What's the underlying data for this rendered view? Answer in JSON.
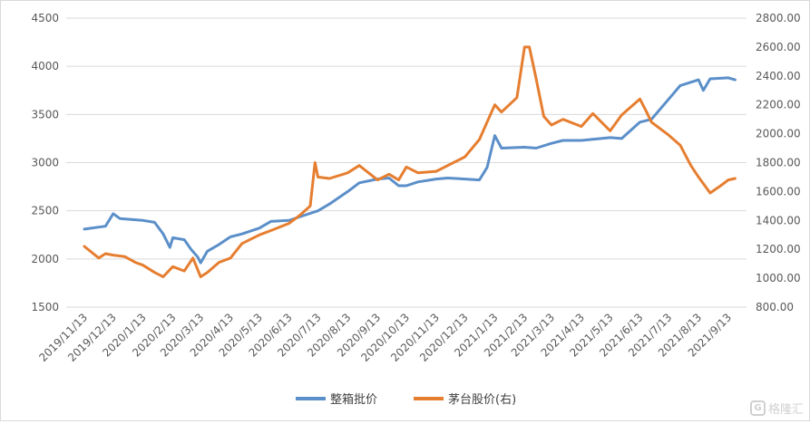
{
  "chart_data": {
    "type": "line",
    "title": "",
    "left_axis": {
      "ticks": [
        "1500",
        "2000",
        "2500",
        "3000",
        "3500",
        "4000",
        "4500"
      ],
      "range": [
        1500,
        4500
      ]
    },
    "right_axis": {
      "ticks": [
        "800.00",
        "1000.00",
        "1200.00",
        "1400.00",
        "1600.00",
        "1800.00",
        "2000.00",
        "2200.00",
        "2400.00",
        "2600.00",
        "2800.00"
      ],
      "range": [
        800,
        2800
      ]
    },
    "x_tick_labels": [
      "2019/11/13",
      "2019/12/13",
      "2020/1/13",
      "2020/2/13",
      "2020/3/13",
      "2020/4/13",
      "2020/5/13",
      "2020/6/13",
      "2020/7/13",
      "2020/8/13",
      "2020/9/13",
      "2020/10/13",
      "2020/11/13",
      "2020/12/13",
      "2021/1/13",
      "2021/2/13",
      "2021/3/13",
      "2021/4/13",
      "2021/5/13",
      "2021/6/13",
      "2021/7/13",
      "2021/8/13",
      "2021/9/13"
    ],
    "grid": "horizontal",
    "legend_position": "bottom",
    "series": [
      {
        "name": "整箱批价",
        "axis": "left",
        "color": "#5b8fc9",
        "points": [
          [
            "2019/11/13",
            2310
          ],
          [
            "2019/11/28",
            2330
          ],
          [
            "2019/12/5",
            2340
          ],
          [
            "2019/12/13",
            2470
          ],
          [
            "2019/12/20",
            2420
          ],
          [
            "2020/1/1",
            2410
          ],
          [
            "2020/1/13",
            2400
          ],
          [
            "2020/1/25",
            2380
          ],
          [
            "2020/2/3",
            2260
          ],
          [
            "2020/2/10",
            2120
          ],
          [
            "2020/2/13",
            2220
          ],
          [
            "2020/2/25",
            2200
          ],
          [
            "2020/3/3",
            2100
          ],
          [
            "2020/3/10",
            2020
          ],
          [
            "2020/3/13",
            1960
          ],
          [
            "2020/3/20",
            2080
          ],
          [
            "2020/4/1",
            2150
          ],
          [
            "2020/4/13",
            2230
          ],
          [
            "2020/4/25",
            2260
          ],
          [
            "2020/5/13",
            2320
          ],
          [
            "2020/5/25",
            2390
          ],
          [
            "2020/6/13",
            2400
          ],
          [
            "2020/6/25",
            2440
          ],
          [
            "2020/7/13",
            2500
          ],
          [
            "2020/7/25",
            2570
          ],
          [
            "2020/8/13",
            2700
          ],
          [
            "2020/8/25",
            2790
          ],
          [
            "2020/9/13",
            2830
          ],
          [
            "2020/9/25",
            2840
          ],
          [
            "2020/10/5",
            2760
          ],
          [
            "2020/10/13",
            2760
          ],
          [
            "2020/10/25",
            2800
          ],
          [
            "2020/11/13",
            2830
          ],
          [
            "2020/11/25",
            2840
          ],
          [
            "2020/12/13",
            2830
          ],
          [
            "2020/12/28",
            2820
          ],
          [
            "2021/1/5",
            2950
          ],
          [
            "2021/1/13",
            3280
          ],
          [
            "2021/1/20",
            3150
          ],
          [
            "2021/2/13",
            3160
          ],
          [
            "2021/2/25",
            3150
          ],
          [
            "2021/3/13",
            3200
          ],
          [
            "2021/3/25",
            3230
          ],
          [
            "2021/4/13",
            3230
          ],
          [
            "2021/5/13",
            3260
          ],
          [
            "2021/5/25",
            3250
          ],
          [
            "2021/6/13",
            3420
          ],
          [
            "2021/6/25",
            3450
          ],
          [
            "2021/7/13",
            3660
          ],
          [
            "2021/7/25",
            3800
          ],
          [
            "2021/8/13",
            3860
          ],
          [
            "2021/8/18",
            3750
          ],
          [
            "2021/8/25",
            3870
          ],
          [
            "2021/9/13",
            3880
          ],
          [
            "2021/9/20",
            3860
          ]
        ]
      },
      {
        "name": "茅台股价(右)",
        "axis": "right",
        "color": "#e67e30",
        "points": [
          [
            "2019/11/13",
            1220
          ],
          [
            "2019/11/28",
            1140
          ],
          [
            "2019/12/5",
            1170
          ],
          [
            "2019/12/13",
            1160
          ],
          [
            "2019/12/25",
            1150
          ],
          [
            "2020/1/5",
            1110
          ],
          [
            "2020/1/13",
            1090
          ],
          [
            "2020/1/25",
            1040
          ],
          [
            "2020/2/3",
            1010
          ],
          [
            "2020/2/13",
            1080
          ],
          [
            "2020/2/25",
            1050
          ],
          [
            "2020/3/5",
            1140
          ],
          [
            "2020/3/13",
            1010
          ],
          [
            "2020/3/20",
            1040
          ],
          [
            "2020/4/1",
            1110
          ],
          [
            "2020/4/13",
            1140
          ],
          [
            "2020/4/25",
            1240
          ],
          [
            "2020/5/13",
            1300
          ],
          [
            "2020/5/25",
            1330
          ],
          [
            "2020/6/13",
            1380
          ],
          [
            "2020/6/25",
            1440
          ],
          [
            "2020/7/5",
            1500
          ],
          [
            "2020/7/10",
            1800
          ],
          [
            "2020/7/13",
            1700
          ],
          [
            "2020/7/25",
            1690
          ],
          [
            "2020/8/13",
            1730
          ],
          [
            "2020/8/25",
            1780
          ],
          [
            "2020/9/13",
            1680
          ],
          [
            "2020/9/25",
            1720
          ],
          [
            "2020/10/5",
            1680
          ],
          [
            "2020/10/13",
            1770
          ],
          [
            "2020/10/25",
            1730
          ],
          [
            "2020/11/13",
            1740
          ],
          [
            "2020/11/25",
            1780
          ],
          [
            "2020/12/13",
            1840
          ],
          [
            "2020/12/28",
            1960
          ],
          [
            "2021/1/5",
            2080
          ],
          [
            "2021/1/13",
            2200
          ],
          [
            "2021/1/20",
            2150
          ],
          [
            "2021/2/5",
            2250
          ],
          [
            "2021/2/13",
            2600
          ],
          [
            "2021/2/18",
            2600
          ],
          [
            "2021/2/25",
            2380
          ],
          [
            "2021/3/5",
            2120
          ],
          [
            "2021/3/13",
            2060
          ],
          [
            "2021/3/25",
            2100
          ],
          [
            "2021/4/13",
            2050
          ],
          [
            "2021/4/25",
            2140
          ],
          [
            "2021/5/13",
            2020
          ],
          [
            "2021/5/25",
            2130
          ],
          [
            "2021/6/13",
            2240
          ],
          [
            "2021/6/20",
            2150
          ],
          [
            "2021/6/25",
            2080
          ],
          [
            "2021/7/13",
            1990
          ],
          [
            "2021/7/25",
            1920
          ],
          [
            "2021/8/5",
            1780
          ],
          [
            "2021/8/13",
            1700
          ],
          [
            "2021/8/25",
            1590
          ],
          [
            "2021/9/5",
            1640
          ],
          [
            "2021/9/13",
            1680
          ],
          [
            "2021/9/20",
            1690
          ]
        ]
      }
    ]
  },
  "watermark": {
    "logo": "G",
    "text": "格隆汇"
  }
}
